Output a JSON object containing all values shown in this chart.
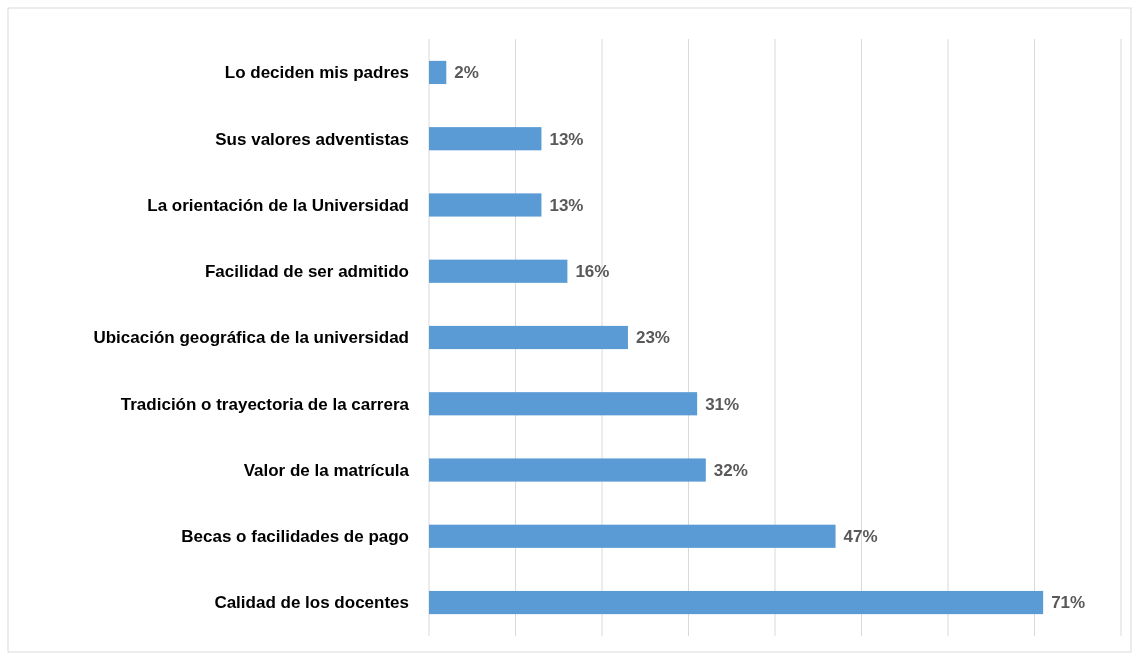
{
  "chart_data": {
    "type": "bar",
    "orientation": "horizontal",
    "categories": [
      "Lo deciden mis padres",
      "Sus valores adventistas",
      "La orientación de la Universidad",
      "Facilidad de ser admitido",
      "Ubicación geográfica de la universidad",
      "Tradición o trayectoria de la carrera",
      "Valor de la matrícula",
      "Becas o facilidades de pago",
      "Calidad de los docentes"
    ],
    "values": [
      2,
      13,
      13,
      16,
      23,
      31,
      32,
      47,
      71
    ],
    "value_labels": [
      "2%",
      "13%",
      "13%",
      "16%",
      "23%",
      "31%",
      "32%",
      "47%",
      "71%"
    ],
    "color": "#5b9bd5",
    "xlim": [
      0,
      80
    ],
    "xticks": [
      {
        "value": 0,
        "label": null
      },
      {
        "value": 10,
        "label": null
      },
      {
        "value": 20,
        "label": null
      },
      {
        "value": 30,
        "label": null
      },
      {
        "value": 40,
        "label": null
      },
      {
        "value": 50,
        "label": null
      },
      {
        "value": 60,
        "label": null
      },
      {
        "value": 70,
        "label": null
      },
      {
        "value": 80,
        "label": null
      }
    ],
    "grid": "x",
    "tick_labels": "y"
  }
}
